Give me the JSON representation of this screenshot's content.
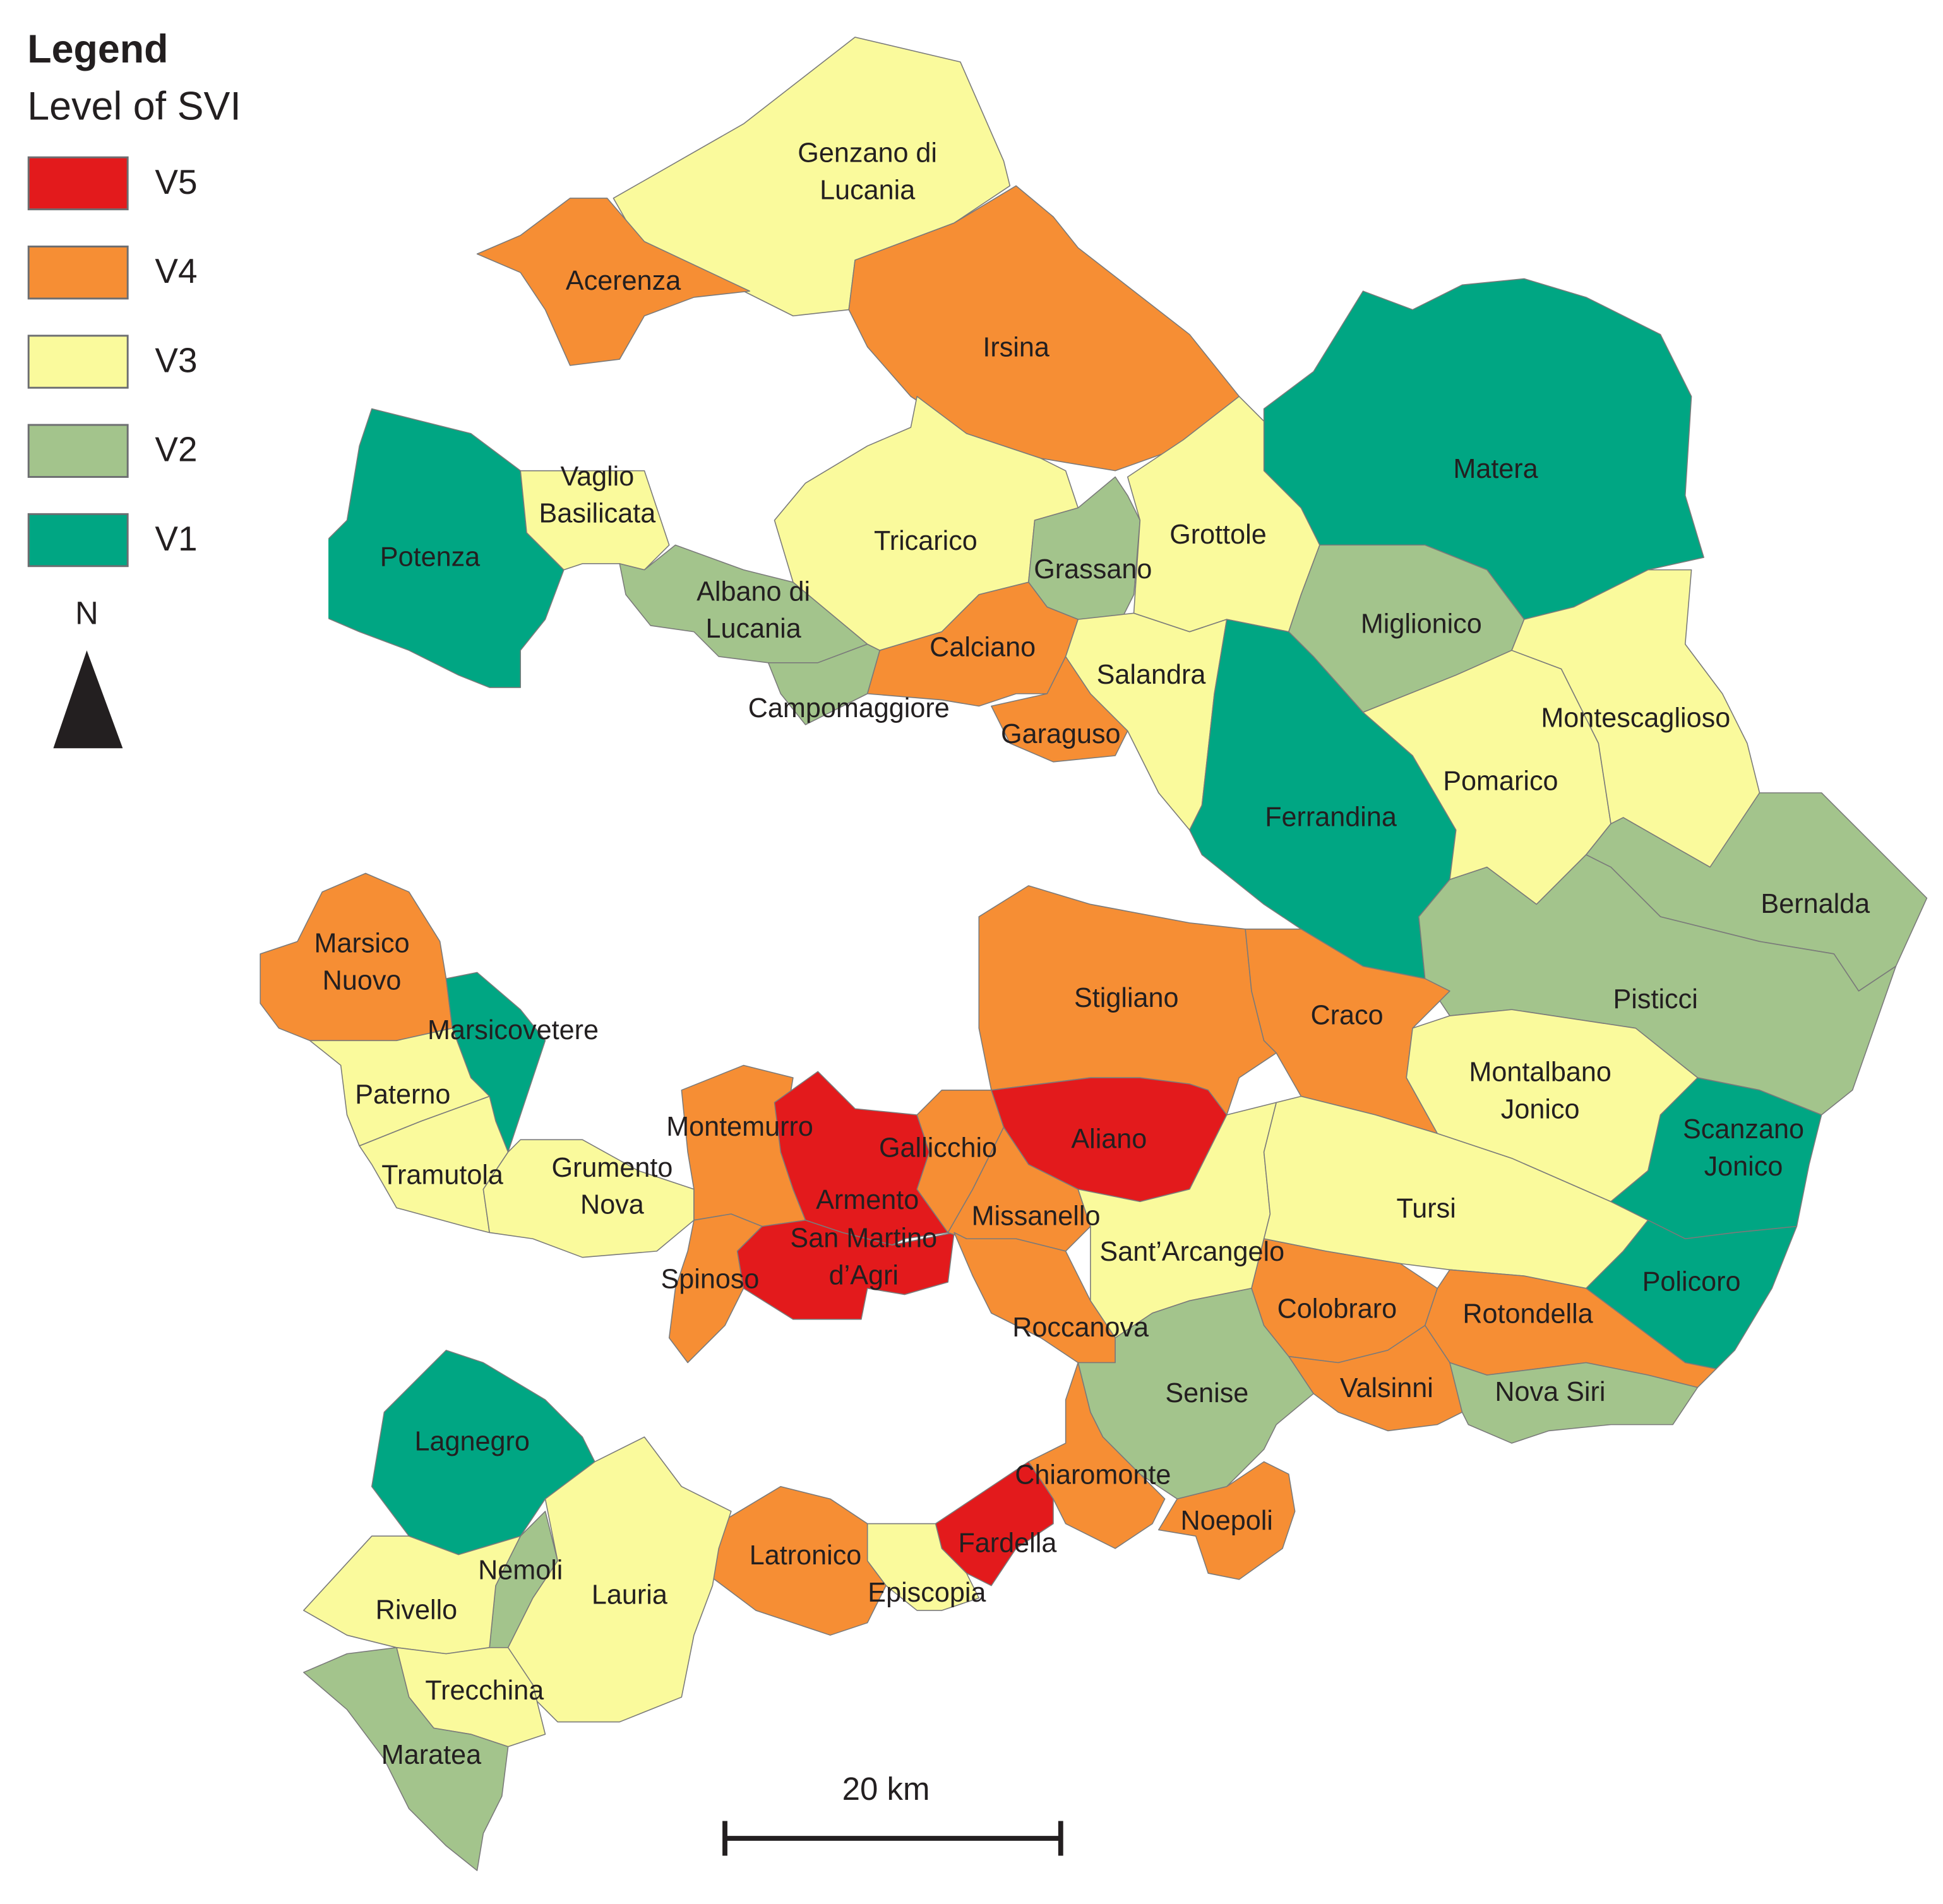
{
  "legend": {
    "title": "Legend",
    "subtitle": "Level of SVI",
    "items": [
      {
        "label": "V5",
        "color": "#e31a1c"
      },
      {
        "label": "V4",
        "color": "#f68e34"
      },
      {
        "label": "V3",
        "color": "#fafa9c"
      },
      {
        "label": "V2",
        "color": "#a3c48c"
      },
      {
        "label": "V1",
        "color": "#00a683"
      }
    ]
  },
  "north_arrow": "N",
  "scale_bar": "20 km",
  "municipalities": [
    {
      "label": [
        "Genzano di",
        "Lucania"
      ],
      "level": "V3"
    },
    {
      "label": [
        "Acerenza"
      ],
      "level": "V4"
    },
    {
      "label": [
        "Irsina"
      ],
      "level": "V4"
    },
    {
      "label": [
        "Matera"
      ],
      "level": "V1"
    },
    {
      "label": [
        "Potenza"
      ],
      "level": "V1"
    },
    {
      "label": [
        "Vaglio",
        "Basilicata"
      ],
      "level": "V3"
    },
    {
      "label": [
        "Albano di",
        "Lucania"
      ],
      "level": "V2"
    },
    {
      "label": [
        "Campomaggiore"
      ],
      "level": "V2"
    },
    {
      "label": [
        "Tricarico"
      ],
      "level": "V3"
    },
    {
      "label": [
        "Grassano"
      ],
      "level": "V2"
    },
    {
      "label": [
        "Grottole"
      ],
      "level": "V3"
    },
    {
      "label": [
        "Calciano"
      ],
      "level": "V4"
    },
    {
      "label": [
        "Garaguso"
      ],
      "level": "V4"
    },
    {
      "label": [
        "Salandra"
      ],
      "level": "V3"
    },
    {
      "label": [
        "Miglionico"
      ],
      "level": "V2"
    },
    {
      "label": [
        "Ferrandina"
      ],
      "level": "V1"
    },
    {
      "label": [
        "Pomarico"
      ],
      "level": "V3"
    },
    {
      "label": [
        "Montescaglioso"
      ],
      "level": "V3"
    },
    {
      "label": [
        "Bernalda"
      ],
      "level": "V2"
    },
    {
      "label": [
        "Pisticci"
      ],
      "level": "V2"
    },
    {
      "label": [
        "Stigliano"
      ],
      "level": "V4"
    },
    {
      "label": [
        "Craco"
      ],
      "level": "V4"
    },
    {
      "label": [
        "Marsico",
        "Nuovo"
      ],
      "level": "V4"
    },
    {
      "label": [
        "Marsicovetere"
      ],
      "level": "V1"
    },
    {
      "label": [
        "Paterno"
      ],
      "level": "V3"
    },
    {
      "label": [
        "Tramutola"
      ],
      "level": "V3"
    },
    {
      "label": [
        "Grumento",
        "Nova"
      ],
      "level": "V3"
    },
    {
      "label": [
        "Montemurro"
      ],
      "level": "V4"
    },
    {
      "label": [
        "Spinoso"
      ],
      "level": "V4"
    },
    {
      "label": [
        "Armento"
      ],
      "level": "V5"
    },
    {
      "label": [
        "San Martino",
        "d’Agri"
      ],
      "level": "V5"
    },
    {
      "label": [
        "Gallicchio"
      ],
      "level": "V4"
    },
    {
      "label": [
        "Aliano"
      ],
      "level": "V5"
    },
    {
      "label": [
        "Missanello"
      ],
      "level": "V4"
    },
    {
      "label": [
        "Sant’Arcangelo"
      ],
      "level": "V3"
    },
    {
      "label": [
        "Roccanova"
      ],
      "level": "V4"
    },
    {
      "label": [
        "Tursi"
      ],
      "level": "V3"
    },
    {
      "label": [
        "Montalbano",
        "Jonico"
      ],
      "level": "V3"
    },
    {
      "label": [
        "Scanzano",
        "Jonico"
      ],
      "level": "V1"
    },
    {
      "label": [
        "Policoro"
      ],
      "level": "V1"
    },
    {
      "label": [
        "Colobraro"
      ],
      "level": "V4"
    },
    {
      "label": [
        "Rotondella"
      ],
      "level": "V4"
    },
    {
      "label": [
        "Valsinni"
      ],
      "level": "V4"
    },
    {
      "label": [
        "Nova Siri"
      ],
      "level": "V2"
    },
    {
      "label": [
        "Senise"
      ],
      "level": "V2"
    },
    {
      "label": [
        "Chiaromonte"
      ],
      "level": "V4"
    },
    {
      "label": [
        "Noepoli"
      ],
      "level": "V4"
    },
    {
      "label": [
        "Fardella"
      ],
      "level": "V5"
    },
    {
      "label": [
        "Episcopia"
      ],
      "level": "V3"
    },
    {
      "label": [
        "Latronico"
      ],
      "level": "V4"
    },
    {
      "label": [
        "Lagnegro"
      ],
      "level": "V1"
    },
    {
      "label": [
        "Nemoli"
      ],
      "level": "V2"
    },
    {
      "label": [
        "Rivello"
      ],
      "level": "V3"
    },
    {
      "label": [
        "Lauria"
      ],
      "level": "V3"
    },
    {
      "label": [
        "Trecchina"
      ],
      "level": "V3"
    },
    {
      "label": [
        "Maratea"
      ],
      "level": "V2"
    }
  ]
}
